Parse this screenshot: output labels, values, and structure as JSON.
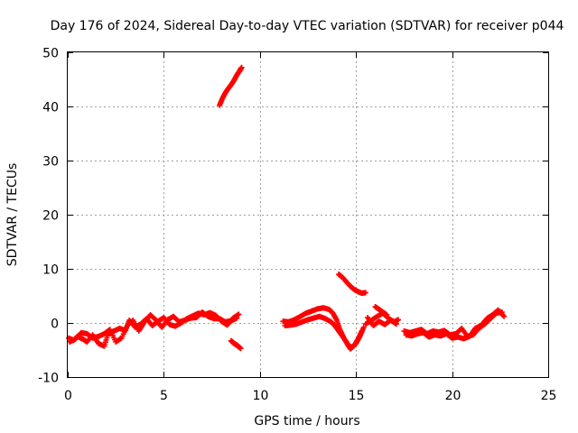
{
  "chart_data": {
    "type": "scatter",
    "title": "Day 176 of 2024, Sidereal Day-to-day VTEC variation (SDTVAR) for receiver p044",
    "xlabel": "GPS time / hours",
    "ylabel": "SDTVAR / TECUs",
    "xlim": [
      0,
      25
    ],
    "ylim": [
      -10,
      50
    ],
    "xticks": [
      0,
      5,
      10,
      15,
      20,
      25
    ],
    "yticks": [
      -10,
      0,
      10,
      20,
      30,
      40,
      50
    ],
    "grid": true,
    "marker": "plus",
    "series": [
      {
        "name": "SDTVAR",
        "color": "#ff0000",
        "segments": [
          {
            "x": [
              0.05,
              0.3,
              0.5,
              0.8,
              1.0,
              1.3,
              1.6,
              1.9,
              2.1,
              2.4,
              2.7,
              3.0,
              3.2,
              3.5,
              3.8,
              4.1,
              4.4,
              4.7,
              5.0,
              5.3,
              5.6,
              5.9,
              6.2,
              6.5,
              6.8,
              7.1,
              7.4,
              7.7,
              8.0,
              8.3,
              8.6,
              8.9
            ],
            "y": [
              -2.8,
              -3.2,
              -2.5,
              -3.0,
              -3.5,
              -2.2,
              -3.8,
              -4.3,
              -2.0,
              -1.5,
              -1.0,
              -1.4,
              0.5,
              -0.8,
              -0.2,
              0.8,
              -0.5,
              0.3,
              1.0,
              -0.3,
              -0.6,
              0.0,
              0.8,
              1.3,
              1.8,
              1.5,
              1.9,
              1.4,
              0.3,
              -0.4,
              0.9,
              1.6
            ]
          },
          {
            "x": [
              0.1,
              0.4,
              0.7,
              1.0,
              1.3,
              1.6,
              1.9,
              2.2,
              2.5,
              2.8,
              3.1,
              3.4,
              3.7,
              4.0,
              4.3,
              4.6,
              4.9,
              5.2,
              5.5,
              5.8,
              6.1,
              6.4,
              6.7,
              7.0,
              7.3,
              7.6,
              7.9,
              8.2,
              8.5,
              8.8
            ],
            "y": [
              -3.5,
              -3.0,
              -1.8,
              -2.0,
              -2.8,
              -2.5,
              -2.0,
              -1.2,
              -3.5,
              -2.8,
              -0.5,
              0.5,
              -1.5,
              0.2,
              1.5,
              0.5,
              -0.8,
              0.6,
              1.2,
              0.2,
              0.5,
              0.9,
              1.0,
              2.0,
              1.2,
              0.8,
              0.8,
              0.2,
              0.4,
              0.9
            ]
          },
          {
            "x": [
              7.9,
              8.05,
              8.2,
              8.35,
              8.5,
              8.65,
              8.8,
              8.95,
              9.05
            ],
            "y": [
              40.2,
              41.5,
              42.5,
              43.3,
              44.0,
              44.8,
              45.8,
              46.6,
              47.2
            ]
          },
          {
            "x": [
              8.5,
              8.6,
              8.7,
              8.8,
              8.9,
              9.0
            ],
            "y": [
              -3.3,
              -3.6,
              -3.9,
              -4.1,
              -4.4,
              -4.7
            ]
          },
          {
            "x": [
              11.2,
              11.5,
              11.8,
              12.1,
              12.4,
              12.7,
              13.0,
              13.3,
              13.6,
              13.8,
              14.0,
              14.2,
              14.4,
              14.6,
              14.8,
              15.0,
              15.2,
              15.4
            ],
            "y": [
              0.3,
              0.2,
              0.6,
              1.2,
              1.8,
              2.2,
              2.6,
              2.8,
              2.5,
              1.8,
              0.5,
              -1.5,
              -3.0,
              -4.2,
              -4.5,
              -3.8,
              -2.5,
              -0.8
            ]
          },
          {
            "x": [
              11.3,
              11.6,
              11.9,
              12.2,
              12.5,
              12.8,
              13.1,
              13.4,
              13.7,
              13.9,
              14.1,
              14.3,
              14.5,
              14.7,
              14.9,
              15.1,
              15.3
            ],
            "y": [
              -0.5,
              -0.4,
              -0.2,
              0.2,
              0.6,
              0.9,
              1.2,
              0.8,
              0.2,
              -0.5,
              -1.5,
              -2.5,
              -3.5,
              -4.8,
              -4.2,
              -3.0,
              -1.5
            ]
          },
          {
            "x": [
              14.1,
              14.3,
              14.5,
              14.7,
              14.9,
              15.1,
              15.3,
              15.5
            ],
            "y": [
              9.0,
              8.4,
              7.6,
              6.8,
              6.2,
              5.8,
              5.5,
              5.6
            ]
          },
          {
            "x": [
              15.5,
              15.8,
              16.1,
              16.4,
              16.7,
              17.0,
              17.2
            ],
            "y": [
              -0.2,
              0.5,
              1.2,
              1.8,
              0.8,
              0.2,
              0.6
            ]
          },
          {
            "x": [
              15.6,
              15.9,
              16.2,
              16.5,
              16.8,
              17.1
            ],
            "y": [
              1.0,
              -0.5,
              0.3,
              -0.3,
              0.5,
              -0.2
            ]
          },
          {
            "x": [
              16.0,
              16.2,
              16.4,
              16.6
            ],
            "y": [
              3.0,
              2.5,
              2.0,
              1.5
            ]
          },
          {
            "x": [
              17.5,
              17.8,
              18.1,
              18.4,
              18.7,
              19.0,
              19.3,
              19.6,
              19.9,
              20.2,
              20.5,
              20.8,
              21.1,
              21.4,
              21.7,
              22.0,
              22.3,
              22.6
            ],
            "y": [
              -1.5,
              -1.8,
              -1.5,
              -1.2,
              -2.0,
              -1.5,
              -1.7,
              -1.4,
              -2.2,
              -2.0,
              -1.0,
              -2.5,
              -2.2,
              -1.0,
              -0.2,
              0.8,
              1.8,
              2.0
            ]
          },
          {
            "x": [
              17.6,
              17.9,
              18.2,
              18.5,
              18.8,
              19.1,
              19.4,
              19.7,
              20.0,
              20.3,
              20.6,
              20.9,
              21.2,
              21.5,
              21.8,
              22.1,
              22.4,
              22.7
            ],
            "y": [
              -2.2,
              -2.4,
              -2.0,
              -1.8,
              -2.6,
              -2.2,
              -2.4,
              -2.0,
              -2.8,
              -2.6,
              -2.9,
              -2.5,
              -1.0,
              -0.5,
              0.8,
              1.5,
              2.4,
              1.2
            ]
          }
        ]
      }
    ]
  }
}
